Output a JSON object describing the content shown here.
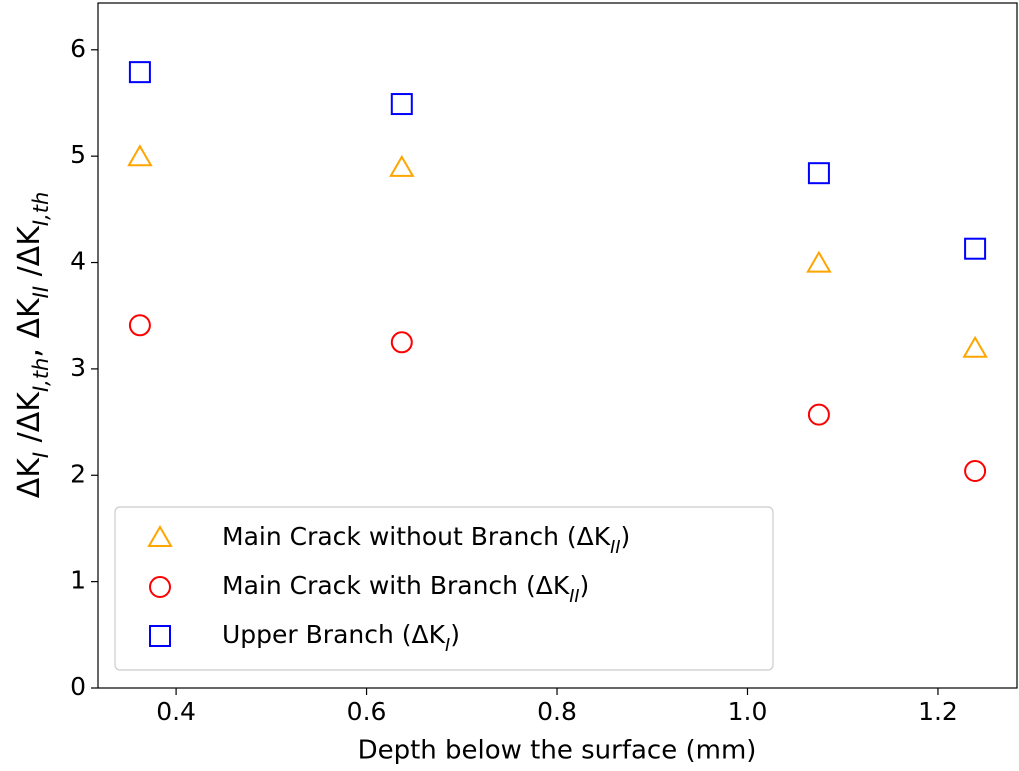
{
  "chart_data": {
    "type": "scatter",
    "xlabel": "Depth below the surface (mm)",
    "ylabel": "ΔKI /ΔKI,th, ΔKII /ΔKI,th",
    "xlim": [
      0.318,
      1.283
    ],
    "ylim": [
      0,
      6.44
    ],
    "xticks": [
      0.4,
      0.6,
      0.8,
      {
        "value": 1,
        "label": "1.0"
      },
      1.2
    ],
    "yticks": [
      0,
      1,
      2,
      3,
      4,
      5,
      6
    ],
    "legend": "lower left",
    "series": [
      {
        "name": "Main Crack without Branch (ΔKII)",
        "color": "#ffa500",
        "marker": "triangle",
        "x": [
          0.362,
          0.637,
          1.075,
          1.239
        ],
        "values": [
          4.99,
          4.89,
          3.99,
          3.19
        ]
      },
      {
        "name": "Main Crack with Branch (ΔKII)",
        "color": "#ff0000",
        "marker": "circle",
        "x": [
          0.362,
          0.637,
          1.075,
          1.239
        ],
        "values": [
          3.41,
          3.25,
          2.57,
          2.04
        ]
      },
      {
        "name": "Upper Branch (ΔKI)",
        "color": "#0000ff",
        "marker": "square",
        "x": [
          0.362,
          0.637,
          1.075,
          1.239
        ],
        "values": [
          5.79,
          5.49,
          4.84,
          4.13
        ]
      }
    ]
  }
}
